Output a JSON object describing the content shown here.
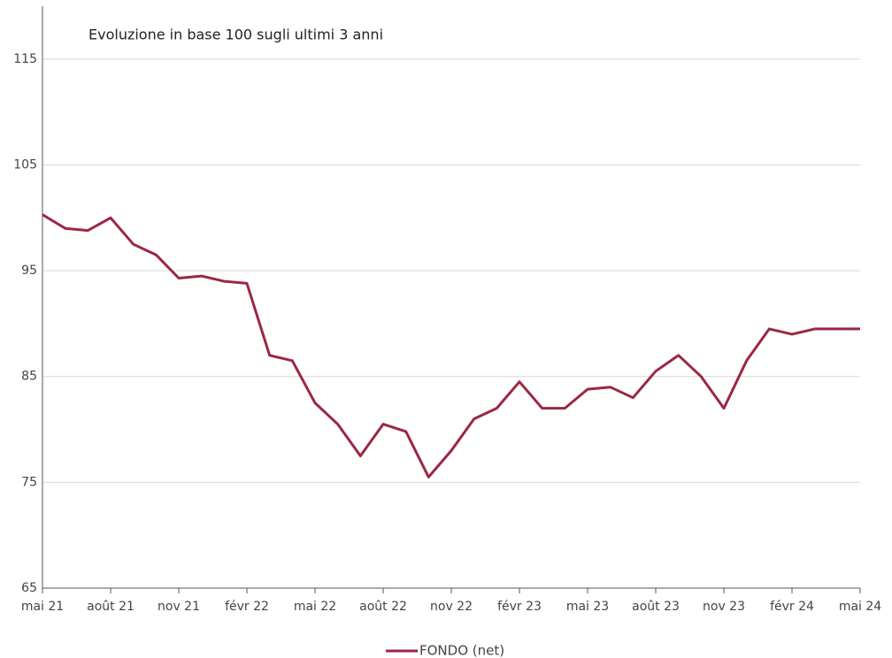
{
  "chart_data": {
    "type": "line",
    "title": "Evoluzione in base 100 sugli ultimi 3 anni",
    "x": [
      "2021-05",
      "2021-06",
      "2021-07",
      "2021-08",
      "2021-09",
      "2021-10",
      "2021-11",
      "2021-12",
      "2022-01",
      "2022-02",
      "2022-03",
      "2022-04",
      "2022-05",
      "2022-06",
      "2022-07",
      "2022-08",
      "2022-09",
      "2022-10",
      "2022-11",
      "2022-12",
      "2023-01",
      "2023-02",
      "2023-03",
      "2023-04",
      "2023-05",
      "2023-06",
      "2023-07",
      "2023-08",
      "2023-09",
      "2023-10",
      "2023-11",
      "2023-12",
      "2024-01",
      "2024-02",
      "2024-03",
      "2024-04",
      "2024-05"
    ],
    "series": [
      {
        "name": "FONDO (net)",
        "color": "#9b2743",
        "values": [
          100.3,
          99,
          98.8,
          100,
          97.5,
          96.5,
          94.3,
          94.5,
          94,
          93.8,
          87,
          86.5,
          82.5,
          80.5,
          77.5,
          80.5,
          79.8,
          75.5,
          78,
          81,
          82,
          84.5,
          82,
          82,
          83.8,
          84,
          83,
          85.5,
          87,
          85,
          82,
          86.5,
          89.5,
          89,
          89.5,
          89.5,
          89.5
        ]
      }
    ],
    "xticks": [
      {
        "value": "2021-05",
        "label": "mai 21"
      },
      {
        "value": "2021-08",
        "label": "août 21"
      },
      {
        "value": "2021-11",
        "label": "nov 21"
      },
      {
        "value": "2022-02",
        "label": "févr 22"
      },
      {
        "value": "2022-05",
        "label": "mai 22"
      },
      {
        "value": "2022-08",
        "label": "août 22"
      },
      {
        "value": "2022-11",
        "label": "nov 22"
      },
      {
        "value": "2023-02",
        "label": "févr 23"
      },
      {
        "value": "2023-05",
        "label": "mai 23"
      },
      {
        "value": "2023-08",
        "label": "août 23"
      },
      {
        "value": "2023-11",
        "label": "nov 23"
      },
      {
        "value": "2024-02",
        "label": "févr 24"
      },
      {
        "value": "2024-05",
        "label": "mai 24"
      }
    ],
    "ylim": [
      65,
      120
    ],
    "yticks": [
      65,
      75,
      85,
      95,
      105,
      115
    ],
    "grid": true
  }
}
